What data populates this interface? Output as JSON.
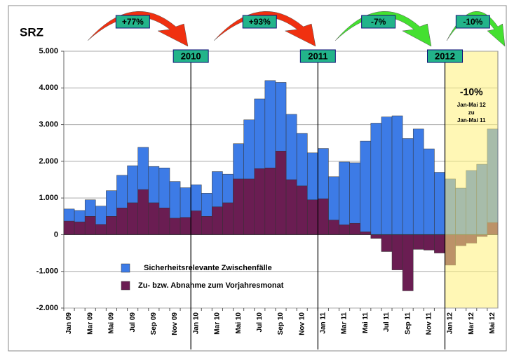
{
  "chart_data": {
    "type": "bar",
    "title": "SRZ",
    "categories": [
      "Jan 09",
      null,
      "Mar 09",
      null,
      "Mai 09",
      null,
      "Jul 09",
      null,
      "Sep 09",
      null,
      "Nov 09",
      null,
      "Jan 10",
      null,
      "Mar 10",
      null,
      "Mai 10",
      null,
      "Jul 10",
      null,
      "Sep 10",
      null,
      "Nov 10",
      null,
      "Jan 11",
      null,
      "Mar 11",
      null,
      "Mai 11",
      null,
      "Jul 11",
      null,
      "Sep 11",
      null,
      "Nov 11",
      null,
      "Jan 12",
      null,
      "Mar 12",
      null,
      "Mai 12"
    ],
    "series": [
      {
        "name": "Sicherheitsrelevante Zwischenfälle",
        "color": "#3d7be6",
        "values": [
          700,
          660,
          950,
          780,
          1200,
          1620,
          1880,
          2380,
          1860,
          1820,
          1450,
          1280,
          1360,
          1130,
          1720,
          1650,
          2480,
          3130,
          3700,
          4200,
          4150,
          3280,
          2760,
          2230,
          2350,
          1580,
          1980,
          1960,
          2550,
          3040,
          3210,
          3240,
          2620,
          2880,
          2340,
          1700,
          1520,
          1270,
          1750,
          1920,
          2880
        ]
      },
      {
        "name": "Zu- bzw. Abnahme zum Vorjahresmonat",
        "color": "#6a1d52",
        "values": [
          370,
          350,
          500,
          280,
          500,
          730,
          870,
          1230,
          870,
          730,
          450,
          470,
          650,
          500,
          760,
          870,
          1520,
          1520,
          1800,
          1820,
          2280,
          1500,
          1330,
          950,
          980,
          400,
          270,
          310,
          80,
          -100,
          -460,
          -960,
          -1530,
          -400,
          -420,
          -500,
          -830,
          -300,
          -230,
          -50,
          330
        ]
      }
    ],
    "ylim": [
      -2000,
      5000
    ],
    "yticks": [
      {
        "value": -2000,
        "label": "-2.000"
      },
      {
        "value": -1000,
        "label": "-1.000"
      },
      0,
      {
        "value": 1000,
        "label": "1.000"
      },
      {
        "value": 2000,
        "label": "2.000"
      },
      {
        "value": 3000,
        "label": "3.000"
      },
      {
        "value": 4000,
        "label": "4.000"
      },
      {
        "value": 5000,
        "label": "5.000"
      }
    ],
    "grid": true,
    "year_labels": [
      "2010",
      "2011",
      "2012"
    ],
    "trend_labels": [
      "+77%",
      "+93%",
      "-7%",
      "-10%"
    ],
    "highlight_note": [
      "-10%",
      "Jan-Mai 12",
      "zu",
      "Jan-Mai 11"
    ]
  }
}
